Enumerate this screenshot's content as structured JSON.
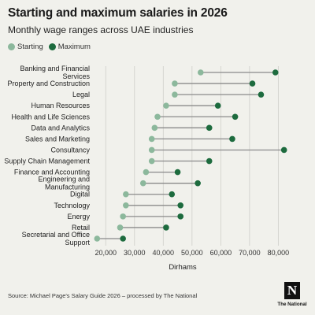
{
  "header": {
    "title": "Starting and maximum salaries in 2026",
    "subtitle": "Monthly wage ranges across UAE industries"
  },
  "legend": {
    "starting_label": "Starting",
    "maximum_label": "Maximum"
  },
  "footer": {
    "source": "Source: Michael Page's Salary Guide 2026 – processed by The National",
    "logo_text": "The National",
    "logo_mark": "N"
  },
  "colors": {
    "starting": "#8cb89c",
    "maximum": "#1d6b3e",
    "connector": "#8a8a8a",
    "grid": "#cfcfca",
    "background": "#f1f1ec"
  },
  "chart_data": {
    "type": "dumbbell",
    "xlabel": "Dirhams",
    "xlim": [
      15000,
      84000
    ],
    "xticks": [
      "20,000",
      "30,000",
      "40,000",
      "50,000",
      "60,000",
      "70,000",
      "80,000"
    ],
    "xtick_values": [
      20000,
      30000,
      40000,
      50000,
      60000,
      70000,
      80000
    ],
    "grid": "vertical",
    "legend_position": "top-left",
    "categories": [
      [
        "Banking and Financial",
        "Services"
      ],
      [
        "Property and Construction"
      ],
      [
        "Legal"
      ],
      [
        "Human Resources"
      ],
      [
        "Health and Life Sciences"
      ],
      [
        "Data and Analytics"
      ],
      [
        "Sales and Marketing"
      ],
      [
        "Consultancy"
      ],
      [
        "Supply Chain Management"
      ],
      [
        "Finance and Accounting"
      ],
      [
        "Engineering and",
        "Manufacturing"
      ],
      [
        "Digital"
      ],
      [
        "Technology"
      ],
      [
        "Energy"
      ],
      [
        "Retail"
      ],
      [
        "Secretarial and Office",
        "Support"
      ]
    ],
    "series": [
      {
        "name": "Starting",
        "values": [
          53000,
          44000,
          44000,
          41000,
          38000,
          37000,
          36000,
          36000,
          36000,
          34000,
          33000,
          27000,
          27000,
          26000,
          25000,
          17000
        ]
      },
      {
        "name": "Maximum",
        "values": [
          79000,
          71000,
          74000,
          59000,
          65000,
          56000,
          64000,
          82000,
          56000,
          45000,
          52000,
          43000,
          46000,
          46000,
          41000,
          26000
        ]
      }
    ]
  }
}
